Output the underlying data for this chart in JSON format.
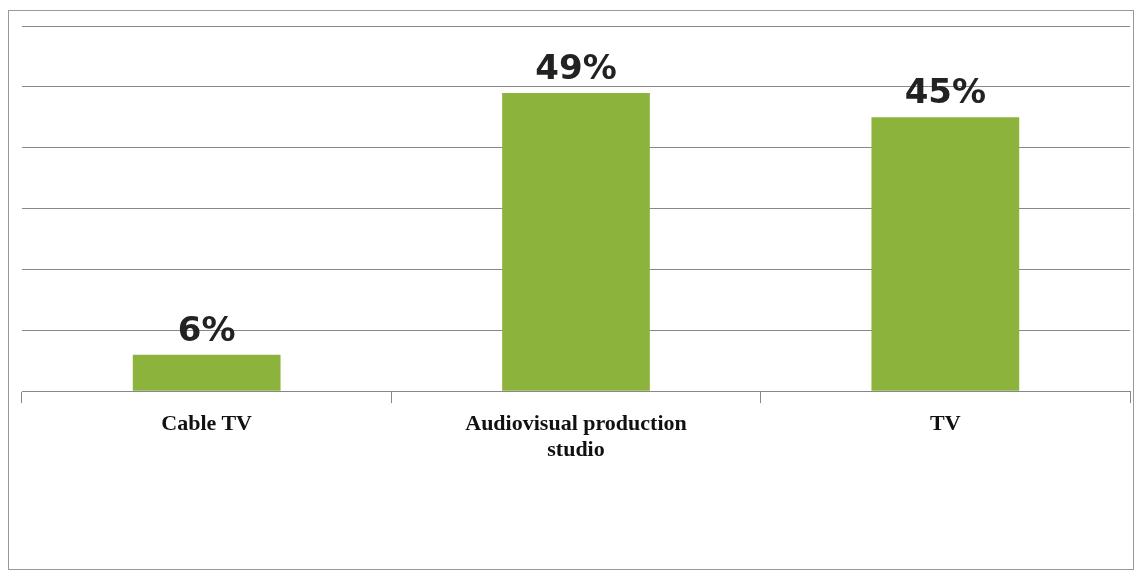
{
  "chart_data": {
    "type": "bar",
    "categories": [
      "Cable TV",
      "Audiovisual production studio",
      "TV"
    ],
    "values": [
      6,
      49,
      45
    ],
    "value_labels": [
      "6%",
      "49%",
      "45%"
    ],
    "color": "#8cb43c",
    "ylim": [
      0,
      60
    ],
    "yticks": [
      {
        "value": 0,
        "label": null
      },
      {
        "value": 10,
        "label": null
      },
      {
        "value": 20,
        "label": null
      },
      {
        "value": 30,
        "label": null
      },
      {
        "value": 40,
        "label": null
      },
      {
        "value": 50,
        "label": null
      },
      {
        "value": 60,
        "label": null
      }
    ],
    "grid": "y",
    "tick_labels": "x",
    "legend": false
  }
}
